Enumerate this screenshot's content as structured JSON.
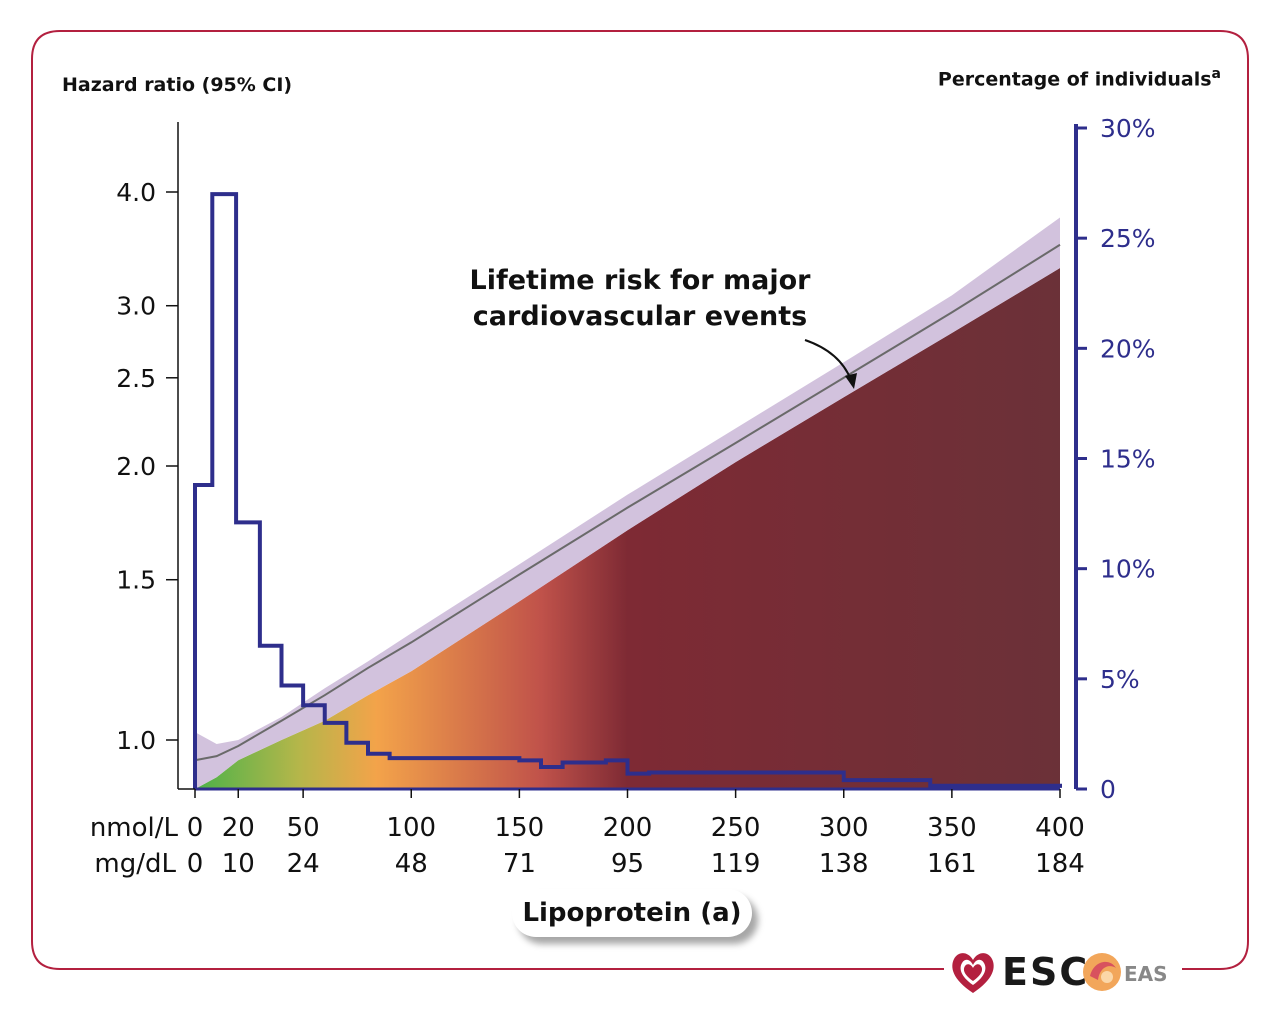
{
  "chart_data": {
    "type": "line",
    "xlabel": "Lipoprotein (a)",
    "ylabel_left": "Hazard ratio (95% CI)",
    "ylabel_right": "Percentage of individuals",
    "ylabel_right_superscript": "a",
    "xlim": [
      0,
      400
    ],
    "x_ticks_nmol": [
      0,
      20,
      50,
      100,
      150,
      200,
      250,
      300,
      350,
      400
    ],
    "x_ticks_mgdl": [
      0,
      10,
      24,
      48,
      71,
      95,
      119,
      138,
      161,
      184
    ],
    "x_unit_nmol": "nmol/L",
    "x_unit_mgdl": "mg/dL",
    "y_left_ticks": [
      "1.0",
      "1.5",
      "2.0",
      "2.5",
      "3.0",
      "4.0"
    ],
    "y_left_scale": "log",
    "y_right_ticks": [
      "0",
      "5%",
      "10%",
      "15%",
      "20%",
      "25%",
      "30%"
    ],
    "y_right_lim": [
      0,
      30
    ],
    "annotation": [
      "Lifetime risk for major",
      "cardiovascular events"
    ],
    "series": [
      {
        "kind": "hazard-ratio",
        "x": [
          0,
          10,
          20,
          40,
          60,
          80,
          100,
          150,
          200,
          250,
          300,
          350,
          400
        ],
        "y": [
          0.95,
          0.96,
          0.985,
          1.05,
          1.12,
          1.2,
          1.28,
          1.52,
          1.8,
          2.12,
          2.5,
          2.95,
          3.5
        ],
        "ci_upper": [
          1.02,
          0.99,
          1.0,
          1.06,
          1.14,
          1.22,
          1.31,
          1.56,
          1.86,
          2.2,
          2.6,
          3.08,
          3.75
        ],
        "ci_lower": [
          0.88,
          0.91,
          0.95,
          1.0,
          1.05,
          1.12,
          1.19,
          1.42,
          1.7,
          2.02,
          2.38,
          2.8,
          3.3
        ]
      },
      {
        "kind": "distribution",
        "step_edges": [
          0,
          8,
          19,
          30,
          40,
          50,
          60,
          70,
          80,
          90,
          150,
          160,
          170,
          190,
          200,
          210,
          300,
          340,
          400
        ],
        "values": [
          13.8,
          27,
          12.1,
          6.5,
          4.7,
          3.8,
          3.0,
          2.1,
          1.6,
          1.4,
          1.3,
          1.0,
          1.2,
          1.3,
          0.7,
          0.75,
          0.4,
          0.15,
          0.05
        ]
      }
    ],
    "colors": {
      "distribution": "#2e2e8c",
      "ci_band": "#d2c2dd",
      "hr_line": "#6a6a6a",
      "gradient": [
        "#4bb249",
        "#c2b34a",
        "#f3a34a",
        "#c0524a",
        "#7e2a34",
        "#6b3138"
      ],
      "frame": "#b3203f"
    }
  }
}
